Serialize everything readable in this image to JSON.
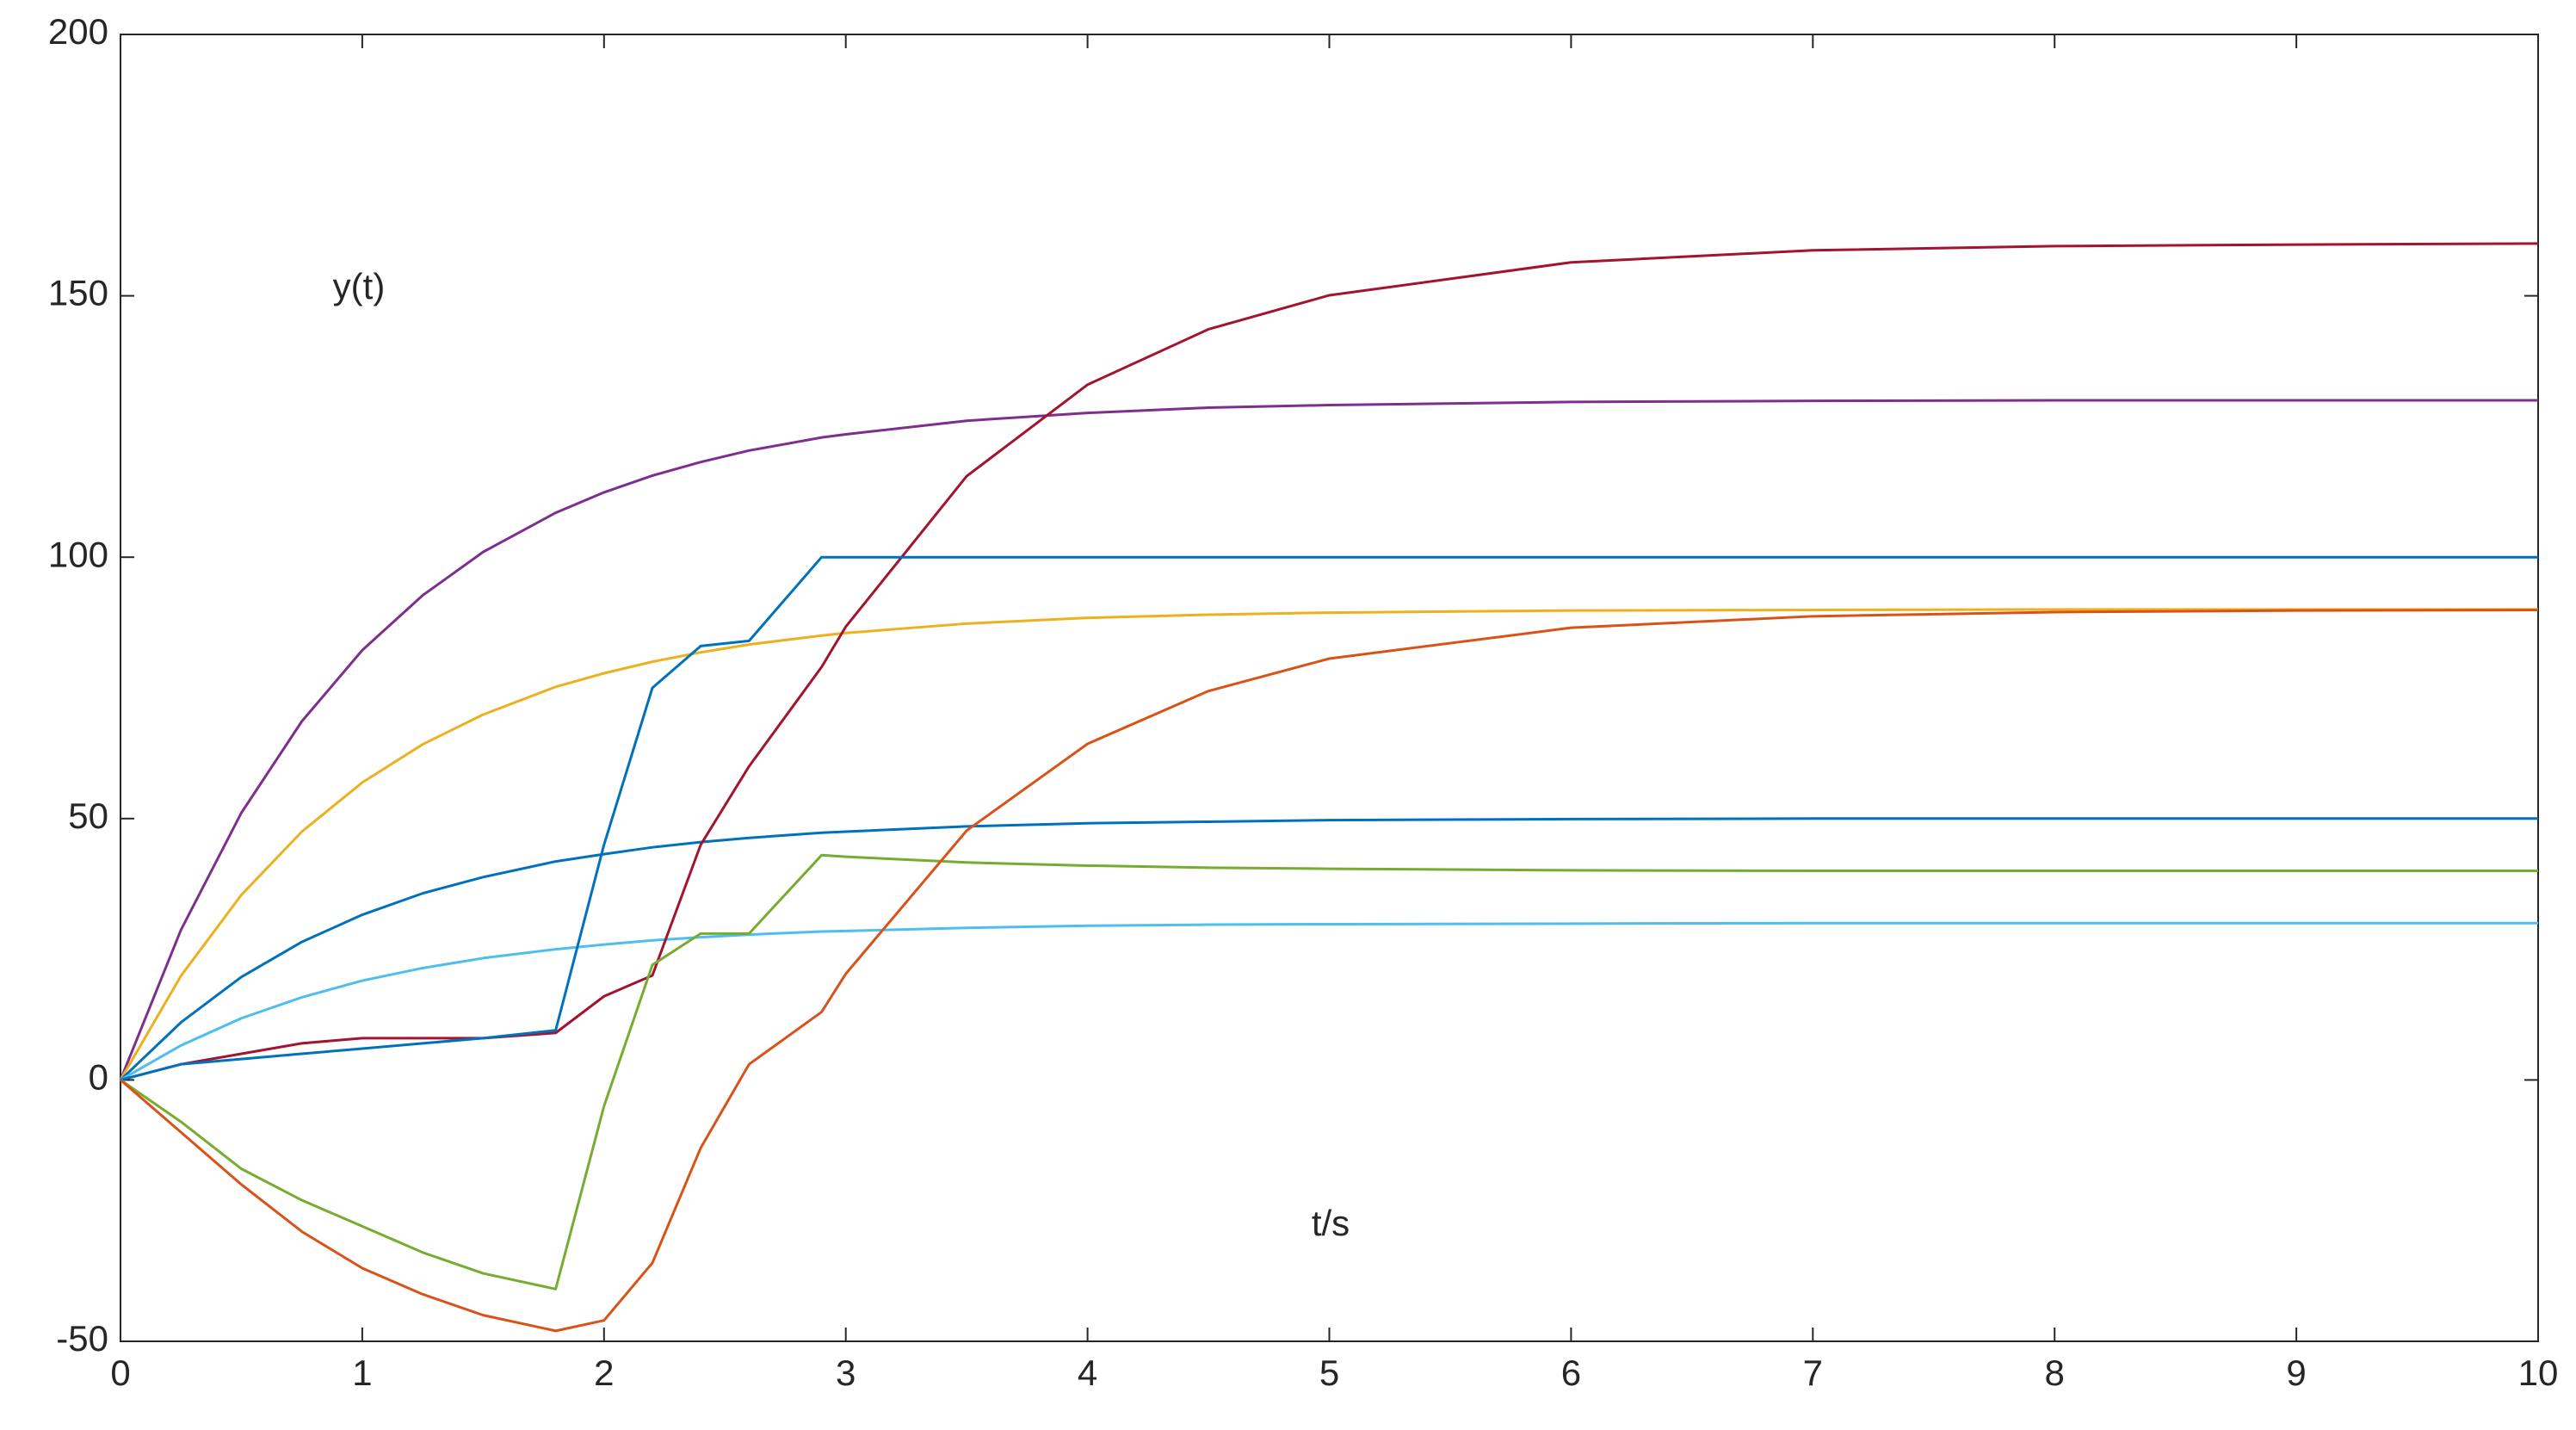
{
  "chart_data": {
    "type": "line",
    "annotations": [
      "y(t)",
      "t/s"
    ],
    "x": [
      0,
      0.25,
      0.5,
      0.75,
      1,
      1.25,
      1.5,
      1.8,
      2,
      2.2,
      2.4,
      2.6,
      2.9,
      3,
      3.5,
      4,
      4.5,
      5,
      6,
      7,
      8,
      9,
      10
    ],
    "series": [
      {
        "color": "#7e2f8e",
        "values": [
          0,
          28.7,
          51.1,
          68.6,
          82.2,
          92.7,
          101,
          108.5,
          112.4,
          115.6,
          118.2,
          120.4,
          122.9,
          123.5,
          126.1,
          127.6,
          128.6,
          129.1,
          129.7,
          129.9,
          130,
          130,
          130
        ]
      },
      {
        "color": "#edb120",
        "values": [
          0,
          19.9,
          35.4,
          47.5,
          56.9,
          64.2,
          69.9,
          75.2,
          77.8,
          80,
          81.8,
          83.3,
          85,
          85.5,
          87.3,
          88.4,
          89,
          89.4,
          89.8,
          89.9,
          90,
          90,
          90
        ]
      },
      {
        "color": "#0072bd",
        "values": [
          0,
          11,
          19.7,
          26.4,
          31.6,
          35.7,
          38.8,
          41.8,
          43.2,
          44.5,
          45.5,
          46.3,
          47.3,
          47.5,
          48.5,
          49.1,
          49.4,
          49.7,
          49.9,
          50,
          50,
          50,
          50
        ]
      },
      {
        "color": "#4dbeee",
        "values": [
          0,
          6.6,
          11.8,
          15.8,
          19,
          21.4,
          23.3,
          25,
          25.9,
          26.7,
          27.3,
          27.8,
          28.4,
          28.5,
          29.1,
          29.5,
          29.7,
          29.8,
          29.9,
          30,
          30,
          30,
          30
        ]
      },
      {
        "color": "#a2142f",
        "values": [
          0,
          3,
          5,
          7,
          8,
          8,
          8,
          9,
          16,
          20,
          45,
          60,
          79,
          86.7,
          115.5,
          133,
          143.6,
          150.1,
          156.4,
          158.7,
          159.5,
          159.8,
          160
        ]
      },
      {
        "color": "#0072bd",
        "values": [
          0,
          3,
          4,
          5,
          6,
          7,
          8,
          9.5,
          45,
          75,
          83,
          84,
          100,
          100,
          100,
          100,
          100,
          100,
          100,
          100,
          100,
          100,
          100
        ]
      },
      {
        "color": "#77ac30",
        "values": [
          0,
          -8,
          -17,
          -23,
          -28,
          -33,
          -37,
          -40,
          -5,
          22,
          28,
          28,
          43,
          42.7,
          41.6,
          41,
          40.6,
          40.4,
          40.1,
          40,
          40,
          40,
          40
        ]
      },
      {
        "color": "#d95319",
        "values": [
          0,
          -10,
          -20,
          -29,
          -36,
          -41,
          -45,
          -48,
          -46,
          -35,
          -13,
          3,
          13,
          20.3,
          47.7,
          64.3,
          74.4,
          80.6,
          86.5,
          88.7,
          89.5,
          89.8,
          89.9
        ]
      }
    ],
    "xlim": [
      0,
      10
    ],
    "xticks": [
      0,
      1,
      2,
      3,
      4,
      5,
      6,
      7,
      8,
      9,
      10
    ],
    "ylim": [
      -50,
      200
    ],
    "yticks": [
      -50,
      0,
      50,
      100,
      150,
      200
    ]
  }
}
